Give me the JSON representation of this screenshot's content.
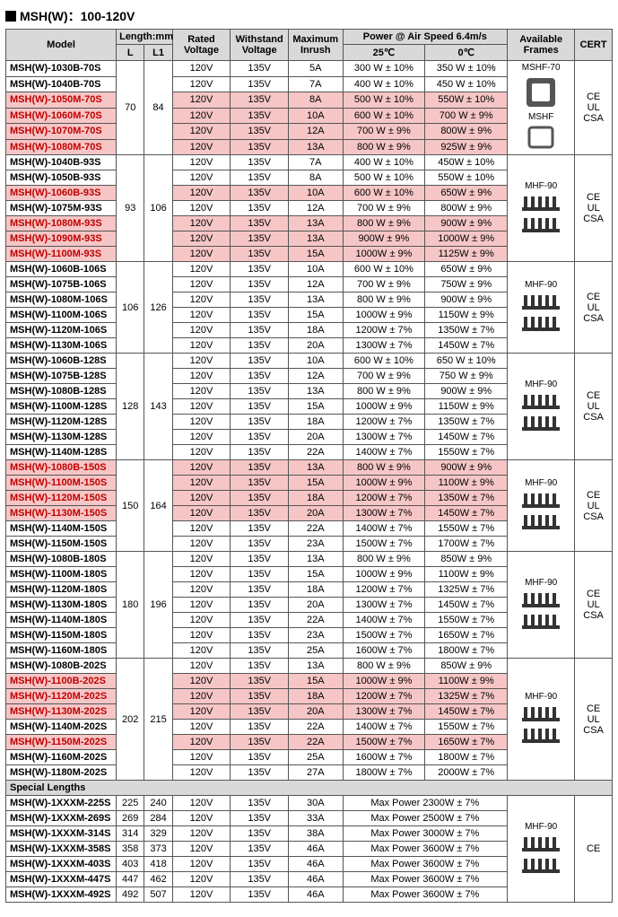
{
  "title": "MSH(W)：100-120V",
  "headers": {
    "model": "Model",
    "length": "Length:mm",
    "L": "L",
    "L1": "L1",
    "rated": "Rated Voltage",
    "withstand": "Withstand Voltage",
    "inrush": "Maximum Inrush",
    "power": "Power @ Air Speed 6.4m/s",
    "p25": "25℃",
    "p0": "0℃",
    "frames": "Available Frames",
    "cert": "CERT"
  },
  "frame_labels": {
    "mshf70": "MSHF-70",
    "mshf": "MSHF",
    "mhf90": "MHF-90"
  },
  "cert_text": "CE\nUL\nCSA",
  "cert_ce": "CE",
  "special_head": "Special Lengths",
  "groups": [
    {
      "L": "70",
      "L1": "84",
      "frame": "mshf70+mshf",
      "cert": "full",
      "rows": [
        {
          "m": "MSH(W)-1030B-70S",
          "rv": "120V",
          "wv": "135V",
          "mi": "5A",
          "p25": "300 W ± 10%",
          "p0": "350 W ± 10%",
          "hl": 0
        },
        {
          "m": "MSH(W)-1040B-70S",
          "rv": "120V",
          "wv": "135V",
          "mi": "7A",
          "p25": "400 W ± 10%",
          "p0": "450 W ± 10%",
          "hl": 0
        },
        {
          "m": "MSH(W)-1050M-70S",
          "rv": "120V",
          "wv": "135V",
          "mi": "8A",
          "p25": "500 W ± 10%",
          "p0": "550W ± 10%",
          "hl": 1
        },
        {
          "m": "MSH(W)-1060M-70S",
          "rv": "120V",
          "wv": "135V",
          "mi": "10A",
          "p25": "600 W ± 10%",
          "p0": "700 W ± 9%",
          "hl": 1
        },
        {
          "m": "MSH(W)-1070M-70S",
          "rv": "120V",
          "wv": "135V",
          "mi": "12A",
          "p25": "700 W ± 9%",
          "p0": "800W ± 9%",
          "hl": 1
        },
        {
          "m": "MSH(W)-1080M-70S",
          "rv": "120V",
          "wv": "135V",
          "mi": "13A",
          "p25": "800 W ± 9%",
          "p0": "925W ± 9%",
          "hl": 1
        }
      ]
    },
    {
      "L": "93",
      "L1": "106",
      "frame": "mhf90",
      "cert": "full",
      "rows": [
        {
          "m": "MSH(W)-1040B-93S",
          "rv": "120V",
          "wv": "135V",
          "mi": "7A",
          "p25": "400 W ± 10%",
          "p0": "450W ± 10%",
          "hl": 0
        },
        {
          "m": "MSH(W)-1050B-93S",
          "rv": "120V",
          "wv": "135V",
          "mi": "8A",
          "p25": "500 W ± 10%",
          "p0": "550W ± 10%",
          "hl": 0
        },
        {
          "m": "MSH(W)-1060B-93S",
          "rv": "120V",
          "wv": "135V",
          "mi": "10A",
          "p25": "600 W ± 10%",
          "p0": "650W ± 9%",
          "hl": 1
        },
        {
          "m": "MSH(W)-1075M-93S",
          "rv": "120V",
          "wv": "135V",
          "mi": "12A",
          "p25": "700 W ± 9%",
          "p0": "800W ± 9%",
          "hl": 0
        },
        {
          "m": "MSH(W)-1080M-93S",
          "rv": "120V",
          "wv": "135V",
          "mi": "13A",
          "p25": "800 W ± 9%",
          "p0": "900W ± 9%",
          "hl": 1
        },
        {
          "m": "MSH(W)-1090M-93S",
          "rv": "120V",
          "wv": "135V",
          "mi": "13A",
          "p25": "900W ± 9%",
          "p0": "1000W ± 9%",
          "hl": 1
        },
        {
          "m": "MSH(W)-1100M-93S",
          "rv": "120V",
          "wv": "135V",
          "mi": "15A",
          "p25": "1000W ± 9%",
          "p0": "1125W ± 9%",
          "hl": 1
        }
      ]
    },
    {
      "L": "106",
      "L1": "126",
      "frame": "mhf90",
      "cert": "full",
      "rows": [
        {
          "m": "MSH(W)-1060B-106S",
          "rv": "120V",
          "wv": "135V",
          "mi": "10A",
          "p25": "600 W ± 10%",
          "p0": "650W ± 9%",
          "hl": 0
        },
        {
          "m": "MSH(W)-1075B-106S",
          "rv": "120V",
          "wv": "135V",
          "mi": "12A",
          "p25": "700 W ± 9%",
          "p0": "750W ± 9%",
          "hl": 0
        },
        {
          "m": "MSH(W)-1080M-106S",
          "rv": "120V",
          "wv": "135V",
          "mi": "13A",
          "p25": "800 W ± 9%",
          "p0": "900W ± 9%",
          "hl": 0
        },
        {
          "m": "MSH(W)-1100M-106S",
          "rv": "120V",
          "wv": "135V",
          "mi": "15A",
          "p25": "1000W ± 9%",
          "p0": "1150W ± 9%",
          "hl": 0
        },
        {
          "m": "MSH(W)-1120M-106S",
          "rv": "120V",
          "wv": "135V",
          "mi": "18A",
          "p25": "1200W ± 7%",
          "p0": "1350W ± 7%",
          "hl": 0
        },
        {
          "m": "MSH(W)-1130M-106S",
          "rv": "120V",
          "wv": "135V",
          "mi": "20A",
          "p25": "1300W ± 7%",
          "p0": "1450W ± 7%",
          "hl": 0
        }
      ]
    },
    {
      "L": "128",
      "L1": "143",
      "frame": "mhf90",
      "cert": "full",
      "rows": [
        {
          "m": "MSH(W)-1060B-128S",
          "rv": "120V",
          "wv": "135V",
          "mi": "10A",
          "p25": "600 W ± 10%",
          "p0": "650 W ± 10%",
          "hl": 0
        },
        {
          "m": "MSH(W)-1075B-128S",
          "rv": "120V",
          "wv": "135V",
          "mi": "12A",
          "p25": "700 W ± 9%",
          "p0": "750 W ± 9%",
          "hl": 0
        },
        {
          "m": "MSH(W)-1080B-128S",
          "rv": "120V",
          "wv": "135V",
          "mi": "13A",
          "p25": "800 W ± 9%",
          "p0": "900W ± 9%",
          "hl": 0
        },
        {
          "m": "MSH(W)-1100M-128S",
          "rv": "120V",
          "wv": "135V",
          "mi": "15A",
          "p25": "1000W ± 9%",
          "p0": "1150W ± 9%",
          "hl": 0
        },
        {
          "m": "MSH(W)-1120M-128S",
          "rv": "120V",
          "wv": "135V",
          "mi": "18A",
          "p25": "1200W ± 7%",
          "p0": "1350W ± 7%",
          "hl": 0
        },
        {
          "m": "MSH(W)-1130M-128S",
          "rv": "120V",
          "wv": "135V",
          "mi": "20A",
          "p25": "1300W ± 7%",
          "p0": "1450W ± 7%",
          "hl": 0
        },
        {
          "m": "MSH(W)-1140M-128S",
          "rv": "120V",
          "wv": "135V",
          "mi": "22A",
          "p25": "1400W ± 7%",
          "p0": "1550W ± 7%",
          "hl": 0
        }
      ]
    },
    {
      "L": "150",
      "L1": "164",
      "frame": "mhf90",
      "cert": "full",
      "rows": [
        {
          "m": "MSH(W)-1080B-150S",
          "rv": "120V",
          "wv": "135V",
          "mi": "13A",
          "p25": "800 W ± 9%",
          "p0": "900W ± 9%",
          "hl": 1
        },
        {
          "m": "MSH(W)-1100M-150S",
          "rv": "120V",
          "wv": "135V",
          "mi": "15A",
          "p25": "1000W ± 9%",
          "p0": "1100W ± 9%",
          "hl": 1
        },
        {
          "m": "MSH(W)-1120M-150S",
          "rv": "120V",
          "wv": "135V",
          "mi": "18A",
          "p25": "1200W ± 7%",
          "p0": "1350W ± 7%",
          "hl": 1
        },
        {
          "m": "MSH(W)-1130M-150S",
          "rv": "120V",
          "wv": "135V",
          "mi": "20A",
          "p25": "1300W ± 7%",
          "p0": "1450W ± 7%",
          "hl": 1
        },
        {
          "m": "MSH(W)-1140M-150S",
          "rv": "120V",
          "wv": "135V",
          "mi": "22A",
          "p25": "1400W ± 7%",
          "p0": "1550W ± 7%",
          "hl": 0
        },
        {
          "m": "MSH(W)-1150M-150S",
          "rv": "120V",
          "wv": "135V",
          "mi": "23A",
          "p25": "1500W ± 7%",
          "p0": "1700W ± 7%",
          "hl": 0
        }
      ]
    },
    {
      "L": "180",
      "L1": "196",
      "frame": "mhf90",
      "cert": "full",
      "rows": [
        {
          "m": "MSH(W)-1080B-180S",
          "rv": "120V",
          "wv": "135V",
          "mi": "13A",
          "p25": "800 W ± 9%",
          "p0": "850W ± 9%",
          "hl": 0
        },
        {
          "m": "MSH(W)-1100M-180S",
          "rv": "120V",
          "wv": "135V",
          "mi": "15A",
          "p25": "1000W ± 9%",
          "p0": "1100W ± 9%",
          "hl": 0
        },
        {
          "m": "MSH(W)-1120M-180S",
          "rv": "120V",
          "wv": "135V",
          "mi": "18A",
          "p25": "1200W ± 7%",
          "p0": "1325W ± 7%",
          "hl": 0
        },
        {
          "m": "MSH(W)-1130M-180S",
          "rv": "120V",
          "wv": "135V",
          "mi": "20A",
          "p25": "1300W ± 7%",
          "p0": "1450W ± 7%",
          "hl": 0
        },
        {
          "m": "MSH(W)-1140M-180S",
          "rv": "120V",
          "wv": "135V",
          "mi": "22A",
          "p25": "1400W ± 7%",
          "p0": "1550W ± 7%",
          "hl": 0
        },
        {
          "m": "MSH(W)-1150M-180S",
          "rv": "120V",
          "wv": "135V",
          "mi": "23A",
          "p25": "1500W ± 7%",
          "p0": "1650W ± 7%",
          "hl": 0
        },
        {
          "m": "MSH(W)-1160M-180S",
          "rv": "120V",
          "wv": "135V",
          "mi": "25A",
          "p25": "1600W ± 7%",
          "p0": "1800W ± 7%",
          "hl": 0
        }
      ]
    },
    {
      "L": "202",
      "L1": "215",
      "frame": "mhf90",
      "cert": "full",
      "rows": [
        {
          "m": "MSH(W)-1080B-202S",
          "rv": "120V",
          "wv": "135V",
          "mi": "13A",
          "p25": "800 W ± 9%",
          "p0": "850W ± 9%",
          "hl": 0
        },
        {
          "m": "MSH(W)-1100B-202S",
          "rv": "120V",
          "wv": "135V",
          "mi": "15A",
          "p25": "1000W ± 9%",
          "p0": "1100W ± 9%",
          "hl": 1
        },
        {
          "m": "MSH(W)-1120M-202S",
          "rv": "120V",
          "wv": "135V",
          "mi": "18A",
          "p25": "1200W ± 7%",
          "p0": "1325W ± 7%",
          "hl": 1
        },
        {
          "m": "MSH(W)-1130M-202S",
          "rv": "120V",
          "wv": "135V",
          "mi": "20A",
          "p25": "1300W ± 7%",
          "p0": "1450W ± 7%",
          "hl": 1
        },
        {
          "m": "MSH(W)-1140M-202S",
          "rv": "120V",
          "wv": "135V",
          "mi": "22A",
          "p25": "1400W ± 7%",
          "p0": "1550W ± 7%",
          "hl": 0
        },
        {
          "m": "MSH(W)-1150M-202S",
          "rv": "120V",
          "wv": "135V",
          "mi": "22A",
          "p25": "1500W ± 7%",
          "p0": "1650W ± 7%",
          "hl": 1
        },
        {
          "m": "MSH(W)-1160M-202S",
          "rv": "120V",
          "wv": "135V",
          "mi": "25A",
          "p25": "1600W ± 7%",
          "p0": "1800W ± 7%",
          "hl": 0
        },
        {
          "m": "MSH(W)-1180M-202S",
          "rv": "120V",
          "wv": "135V",
          "mi": "27A",
          "p25": "1800W ± 7%",
          "p0": "2000W ± 7%",
          "hl": 0
        }
      ]
    }
  ],
  "special": {
    "frame": "mhf90",
    "cert": "ce",
    "rows": [
      {
        "m": "MSH(W)-1XXXM-225S",
        "L": "225",
        "L1": "240",
        "rv": "120V",
        "wv": "135V",
        "mi": "30A",
        "p": "Max Power 2300W ± 7%"
      },
      {
        "m": "MSH(W)-1XXXM-269S",
        "L": "269",
        "L1": "284",
        "rv": "120V",
        "wv": "135V",
        "mi": "33A",
        "p": "Max Power 2500W ± 7%"
      },
      {
        "m": "MSH(W)-1XXXM-314S",
        "L": "314",
        "L1": "329",
        "rv": "120V",
        "wv": "135V",
        "mi": "38A",
        "p": "Max Power 3000W ± 7%"
      },
      {
        "m": "MSH(W)-1XXXM-358S",
        "L": "358",
        "L1": "373",
        "rv": "120V",
        "wv": "135V",
        "mi": "46A",
        "p": "Max Power 3600W ± 7%"
      },
      {
        "m": "MSH(W)-1XXXM-403S",
        "L": "403",
        "L1": "418",
        "rv": "120V",
        "wv": "135V",
        "mi": "46A",
        "p": "Max Power 3600W ± 7%"
      },
      {
        "m": "MSH(W)-1XXXM-447S",
        "L": "447",
        "L1": "462",
        "rv": "120V",
        "wv": "135V",
        "mi": "46A",
        "p": "Max Power 3600W ± 7%"
      },
      {
        "m": "MSH(W)-1XXXM-492S",
        "L": "492",
        "L1": "507",
        "rv": "120V",
        "wv": "135V",
        "mi": "46A",
        "p": "Max Power 3600W ± 7%"
      }
    ]
  },
  "colors": {
    "highlight": "#f6c6c6",
    "hl_text": "#c00000",
    "header_bg": "#d9d9d9",
    "border": "#555555"
  }
}
